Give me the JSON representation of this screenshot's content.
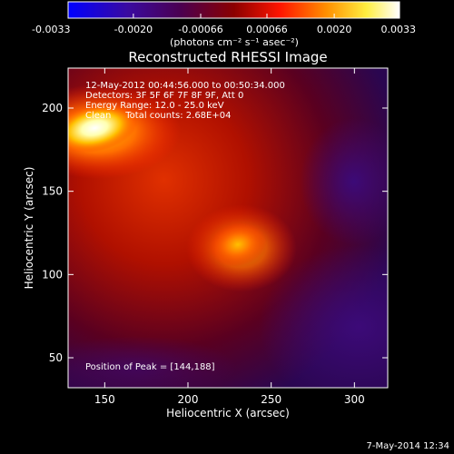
{
  "chart_data": {
    "type": "heatmap",
    "title": "Reconstructed RHESSI Image",
    "xlabel": "Heliocentric X (arcsec)",
    "ylabel": "Heliocentric Y (arcsec)",
    "xlim": [
      128,
      320
    ],
    "ylim": [
      32,
      224
    ],
    "x_ticks": [
      150,
      200,
      250,
      300
    ],
    "x_tick_labels": [
      "150",
      "200",
      "250",
      "300"
    ],
    "y_ticks": [
      50,
      100,
      150,
      200
    ],
    "y_tick_labels": [
      "50",
      "100",
      "150",
      "200"
    ],
    "colorbar": {
      "min": -0.0033,
      "max": 0.0033,
      "ticks": [
        -0.0033,
        -0.002,
        -0.00066,
        0.00066,
        0.002,
        0.0033
      ],
      "tick_labels": [
        "-0.0033",
        "-0.0020",
        "-0.00066",
        "0.00066",
        "0.0020",
        "0.0033"
      ],
      "unit_label": "(photons cm⁻² s⁻¹ asec⁻²)",
      "colors": [
        "#0000ff",
        "#4b0082",
        "#8b0000",
        "#ff0000",
        "#ff9900",
        "#ffff66",
        "#ffffff"
      ]
    },
    "sources": [
      {
        "x": 144,
        "y": 188,
        "intensity": 0.0033
      },
      {
        "x": 230,
        "y": 118,
        "intensity": 0.0021
      }
    ],
    "peak": {
      "x": 144,
      "y": 188
    }
  },
  "annotations": {
    "time_range": "12-May-2012 00:44:56.000 to 00:50:34.000",
    "detectors": "Detectors: 3F 5F 6F 7F 8F 9F, Att 0",
    "energy_range": "Energy Range: 12.0 - 25.0 keV",
    "method_and_counts": "Clean     Total counts: 2.68E+04",
    "peak_position": "Position of Peak = [144,188]"
  },
  "footer": {
    "date": "7-May-2014 12:34"
  }
}
